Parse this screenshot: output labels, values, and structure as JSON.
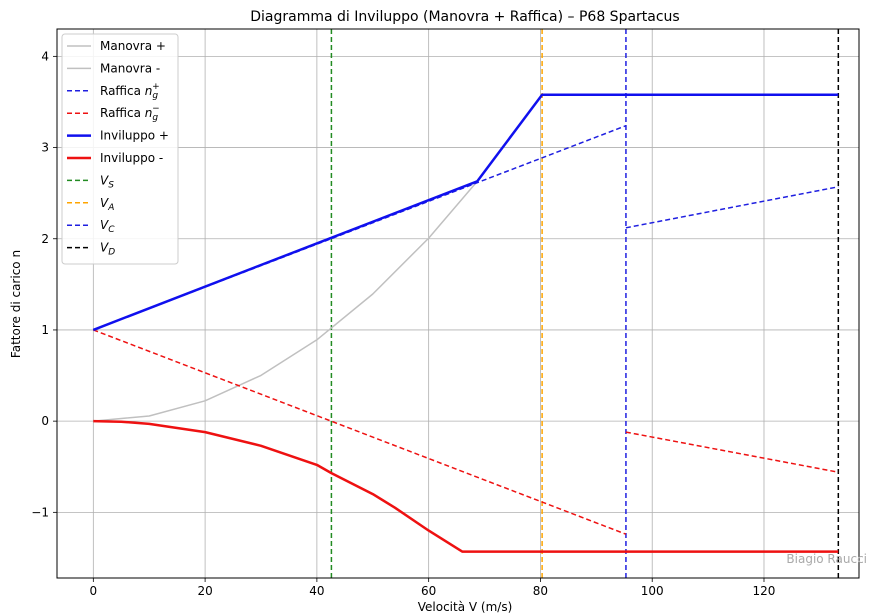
{
  "chart_data": {
    "type": "line",
    "title": "Diagramma di Inviluppo (Manovra + Raffica) – P68 Spartacus",
    "xlabel": "Velocità V (m/s)",
    "ylabel": "Fattore di carico n",
    "xlim": [
      -6.5,
      137
    ],
    "ylim": [
      -1.72,
      4.3
    ],
    "xticks": [
      0,
      20,
      40,
      60,
      80,
      100,
      120
    ],
    "yticks": [
      -1,
      0,
      1,
      2,
      3,
      4
    ],
    "xtick_labels": [
      "0",
      "20",
      "40",
      "60",
      "80",
      "100",
      "120"
    ],
    "ytick_labels": [
      "−1",
      "0",
      "1",
      "2",
      "3",
      "4"
    ],
    "grid": true,
    "legend_position": "top-left",
    "watermark": "Biagio Raucci",
    "series": [
      {
        "name": "Manovra +",
        "color": "#c0c0c0",
        "style": "solid",
        "width": 1.5,
        "x": [
          0,
          10,
          20,
          30,
          40,
          50,
          60,
          68.7
        ],
        "y": [
          0,
          0.056,
          0.223,
          0.502,
          0.892,
          1.394,
          2.007,
          2.63
        ]
      },
      {
        "name": "Manovra -",
        "color": "#c0c0c0",
        "style": "solid",
        "width": 1.5,
        "x": [],
        "y": []
      },
      {
        "name": "Raffica n_g^+",
        "label_main": "Raffica n",
        "label_sub": "g",
        "label_sup": "+",
        "color": "#1f1fe0",
        "style": "dashed",
        "width": 1.5,
        "segments": [
          {
            "x": [
              0,
              95.3
            ],
            "y": [
              1,
              3.24
            ]
          },
          {
            "x": [
              95.3,
              133.3
            ],
            "y": [
              2.12,
              2.57
            ]
          }
        ]
      },
      {
        "name": "Raffica n_g^-",
        "label_main": "Raffica n",
        "label_sub": "g",
        "label_sup": "−",
        "color": "#ee1111",
        "style": "dashed",
        "width": 1.5,
        "segments": [
          {
            "x": [
              0,
              95.3
            ],
            "y": [
              1,
              -1.24
            ]
          },
          {
            "x": [
              95.3,
              133.3
            ],
            "y": [
              -0.12,
              -0.56
            ]
          }
        ]
      },
      {
        "name": "Inviluppo +",
        "color": "#1010ee",
        "style": "solid",
        "width": 2.5,
        "x": [
          0,
          68.7,
          80.3,
          133.3
        ],
        "y": [
          1,
          2.63,
          3.58,
          3.58
        ]
      },
      {
        "name": "Inviluppo -",
        "color": "#ee1111",
        "style": "solid",
        "width": 2.5,
        "x": [
          0,
          5,
          10,
          20,
          30,
          40,
          42.6,
          50,
          54,
          60,
          66,
          133.3
        ],
        "y": [
          0,
          -0.006,
          -0.03,
          -0.12,
          -0.27,
          -0.48,
          -0.57,
          -0.8,
          -0.95,
          -1.2,
          -1.43,
          -1.43
        ]
      }
    ],
    "vlines": [
      {
        "name": "V_S",
        "label_main": "V",
        "label_sub": "S",
        "x": 42.6,
        "color": "#228b22"
      },
      {
        "name": "V_A",
        "label_main": "V",
        "label_sub": "A",
        "x": 80.3,
        "color": "#ffa500"
      },
      {
        "name": "V_C",
        "label_main": "V",
        "label_sub": "C",
        "x": 95.3,
        "color": "#1f1fe0"
      },
      {
        "name": "V_D",
        "label_main": "V",
        "label_sub": "D",
        "x": 133.3,
        "color": "#000000"
      }
    ]
  }
}
